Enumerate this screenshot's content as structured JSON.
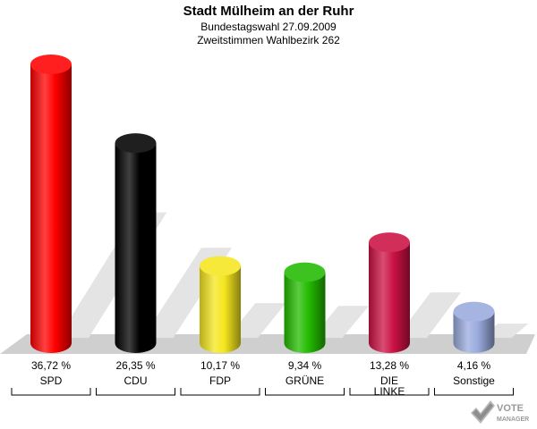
{
  "header": {
    "title": "Stadt Mülheim an der Ruhr",
    "subtitle1": "Bundestagswahl 27.09.2009",
    "subtitle2": "Zweitstimmen Wahlbezirk 262"
  },
  "logo": {
    "line1": "VOTE",
    "line2": "MANAGER"
  },
  "chart_data": {
    "type": "bar",
    "title": "Stadt Mülheim an der Ruhr",
    "categories": [
      "SPD",
      "CDU",
      "FDP",
      "GRÜNE",
      "DIE LINKE",
      "Sonstige"
    ],
    "category_lines": [
      [
        "SPD"
      ],
      [
        "CDU"
      ],
      [
        "FDP"
      ],
      [
        "GRÜNE"
      ],
      [
        "DIE",
        "LINKE"
      ],
      [
        "Sonstige"
      ]
    ],
    "values": [
      36.72,
      26.35,
      10.17,
      9.34,
      13.28,
      4.16
    ],
    "value_labels": [
      "36,72 %",
      "26,35 %",
      "10,17 %",
      "9,34 %",
      "13,28 %",
      "4,16 %"
    ],
    "colors": [
      "#ff0000",
      "#000000",
      "#f5e61e",
      "#22bb00",
      "#cc1144",
      "#99aadd"
    ],
    "ylim": [
      0,
      36.72
    ],
    "grid": false,
    "legend": "none"
  }
}
